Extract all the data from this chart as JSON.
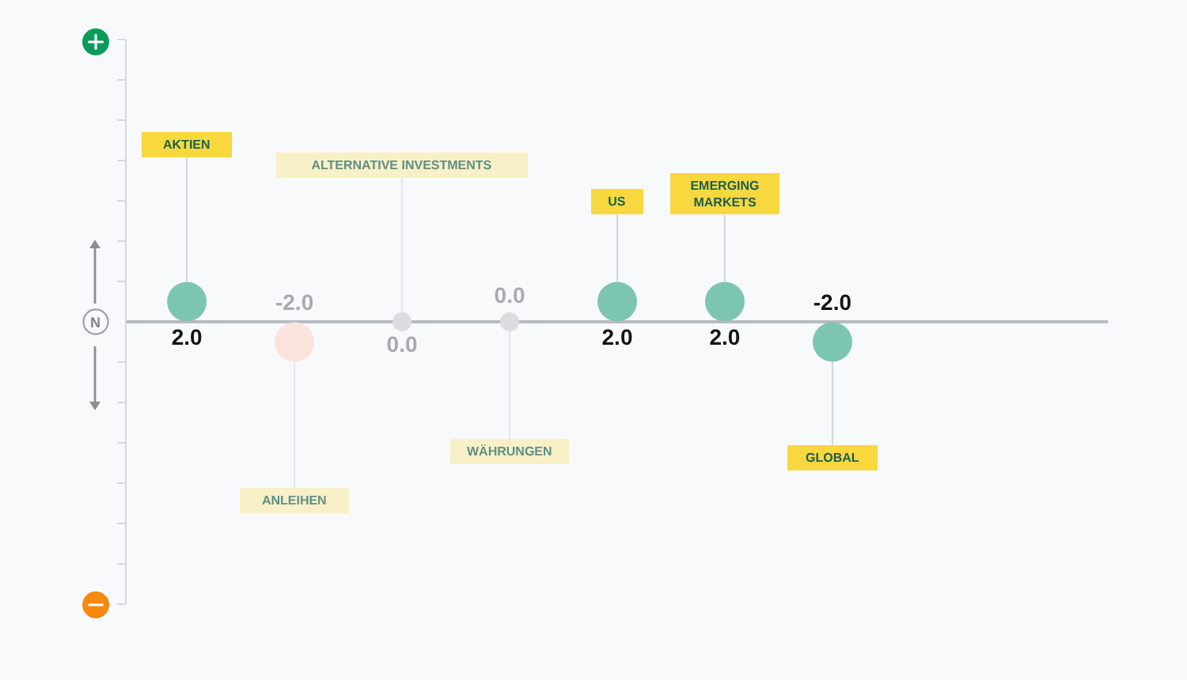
{
  "chart_data": {
    "type": "scatter",
    "marker": "circle",
    "tick_labels": "x",
    "categories": [
      "AKTIEN",
      "ANLEIHEN",
      "ALTERNATIVE INVESTMENTS",
      "WÄHRUNGEN",
      "US",
      "EMERGING MARKETS",
      "GLOBAL"
    ],
    "series": [
      {
        "color": "#7cc6b1",
        "values": [
          2.0,
          null,
          null,
          null,
          2.0,
          2.0,
          -2.0
        ],
        "value_labels": [
          "2.0",
          null,
          null,
          null,
          "2.0",
          "2.0",
          "-2.0"
        ]
      },
      {
        "color": "#fae3da",
        "values": [
          null,
          -2.0,
          null,
          null,
          null,
          null,
          null
        ],
        "value_labels": [
          null,
          "-2.0",
          null,
          null,
          null,
          null,
          null
        ]
      },
      {
        "color": "#dcdde1",
        "values": [
          null,
          null,
          0.0,
          0.0,
          null,
          null,
          null
        ],
        "value_labels": [
          null,
          null,
          "0.0",
          "0.0",
          null,
          null,
          null
        ]
      }
    ],
    "ylim": [
      -28,
      28
    ],
    "yticks": [
      {
        "value": -28,
        "label": null
      },
      {
        "value": -24,
        "label": null
      },
      {
        "value": -20,
        "label": null
      },
      {
        "value": -16,
        "label": null
      },
      {
        "value": -12,
        "label": null
      },
      {
        "value": -8,
        "label": null
      },
      {
        "value": -4,
        "label": null
      },
      {
        "value": 4,
        "label": null
      },
      {
        "value": 8,
        "label": null
      },
      {
        "value": 12,
        "label": null
      },
      {
        "value": 16,
        "label": null
      },
      {
        "value": 20,
        "label": null
      },
      {
        "value": 24,
        "label": null
      },
      {
        "value": 28,
        "label": null
      }
    ],
    "annotations": [
      "N"
    ]
  }
}
